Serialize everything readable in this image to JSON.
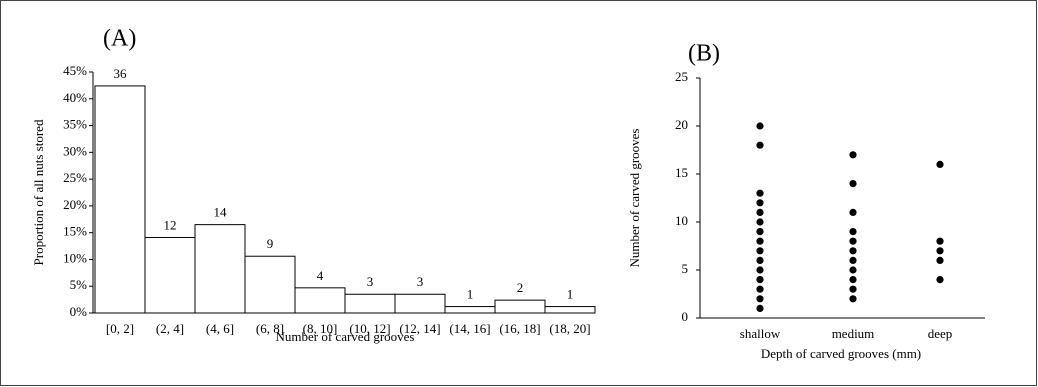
{
  "charts": [
    {
      "type": "bar",
      "panel": "(A)",
      "x_label": "Number of carved grooves",
      "y_label": "Proportion of all nuts stored",
      "categories": [
        "[0, 2]",
        "(2, 4]",
        "(4, 6]",
        "(6, 8]",
        "(8, 10]",
        "(10, 12]",
        "(12, 14]",
        "(14, 16]",
        "(16, 18]",
        "(18, 20]"
      ],
      "values": [
        42.4,
        14.1,
        16.5,
        10.6,
        4.7,
        3.5,
        3.5,
        1.2,
        2.4,
        1.2
      ],
      "counts": [
        36,
        12,
        14,
        9,
        4,
        3,
        3,
        1,
        2,
        1
      ],
      "color": "#ffffff",
      "ylim": [
        0,
        45
      ],
      "yticks": [
        {
          "value": 0,
          "label": "0%"
        },
        {
          "value": 5,
          "label": "5%"
        },
        {
          "value": 10,
          "label": "10%"
        },
        {
          "value": 15,
          "label": "15%"
        },
        {
          "value": 20,
          "label": "20%"
        },
        {
          "value": 25,
          "label": "25%"
        },
        {
          "value": 30,
          "label": "30%"
        },
        {
          "value": 35,
          "label": "35%"
        },
        {
          "value": 40,
          "label": "40%"
        },
        {
          "value": 45,
          "label": "45%"
        }
      ]
    },
    {
      "type": "strip",
      "panel": "(B)",
      "x_label": "Depth of carved grooves (mm)",
      "y_label": "Number of carved grooves",
      "categories": [
        "shallow",
        "medium",
        "deep"
      ],
      "groups": [
        [
          1,
          2,
          3,
          4,
          5,
          6,
          7,
          8,
          9,
          10,
          11,
          12,
          13,
          18,
          20
        ],
        [
          2,
          3,
          4,
          5,
          6,
          7,
          8,
          9,
          11,
          14,
          17
        ],
        [
          4,
          6,
          7,
          8,
          16
        ]
      ],
      "color": "#000000",
      "ylim": [
        0,
        25
      ],
      "yticks": [
        0,
        5,
        10,
        15,
        20,
        25
      ]
    }
  ]
}
